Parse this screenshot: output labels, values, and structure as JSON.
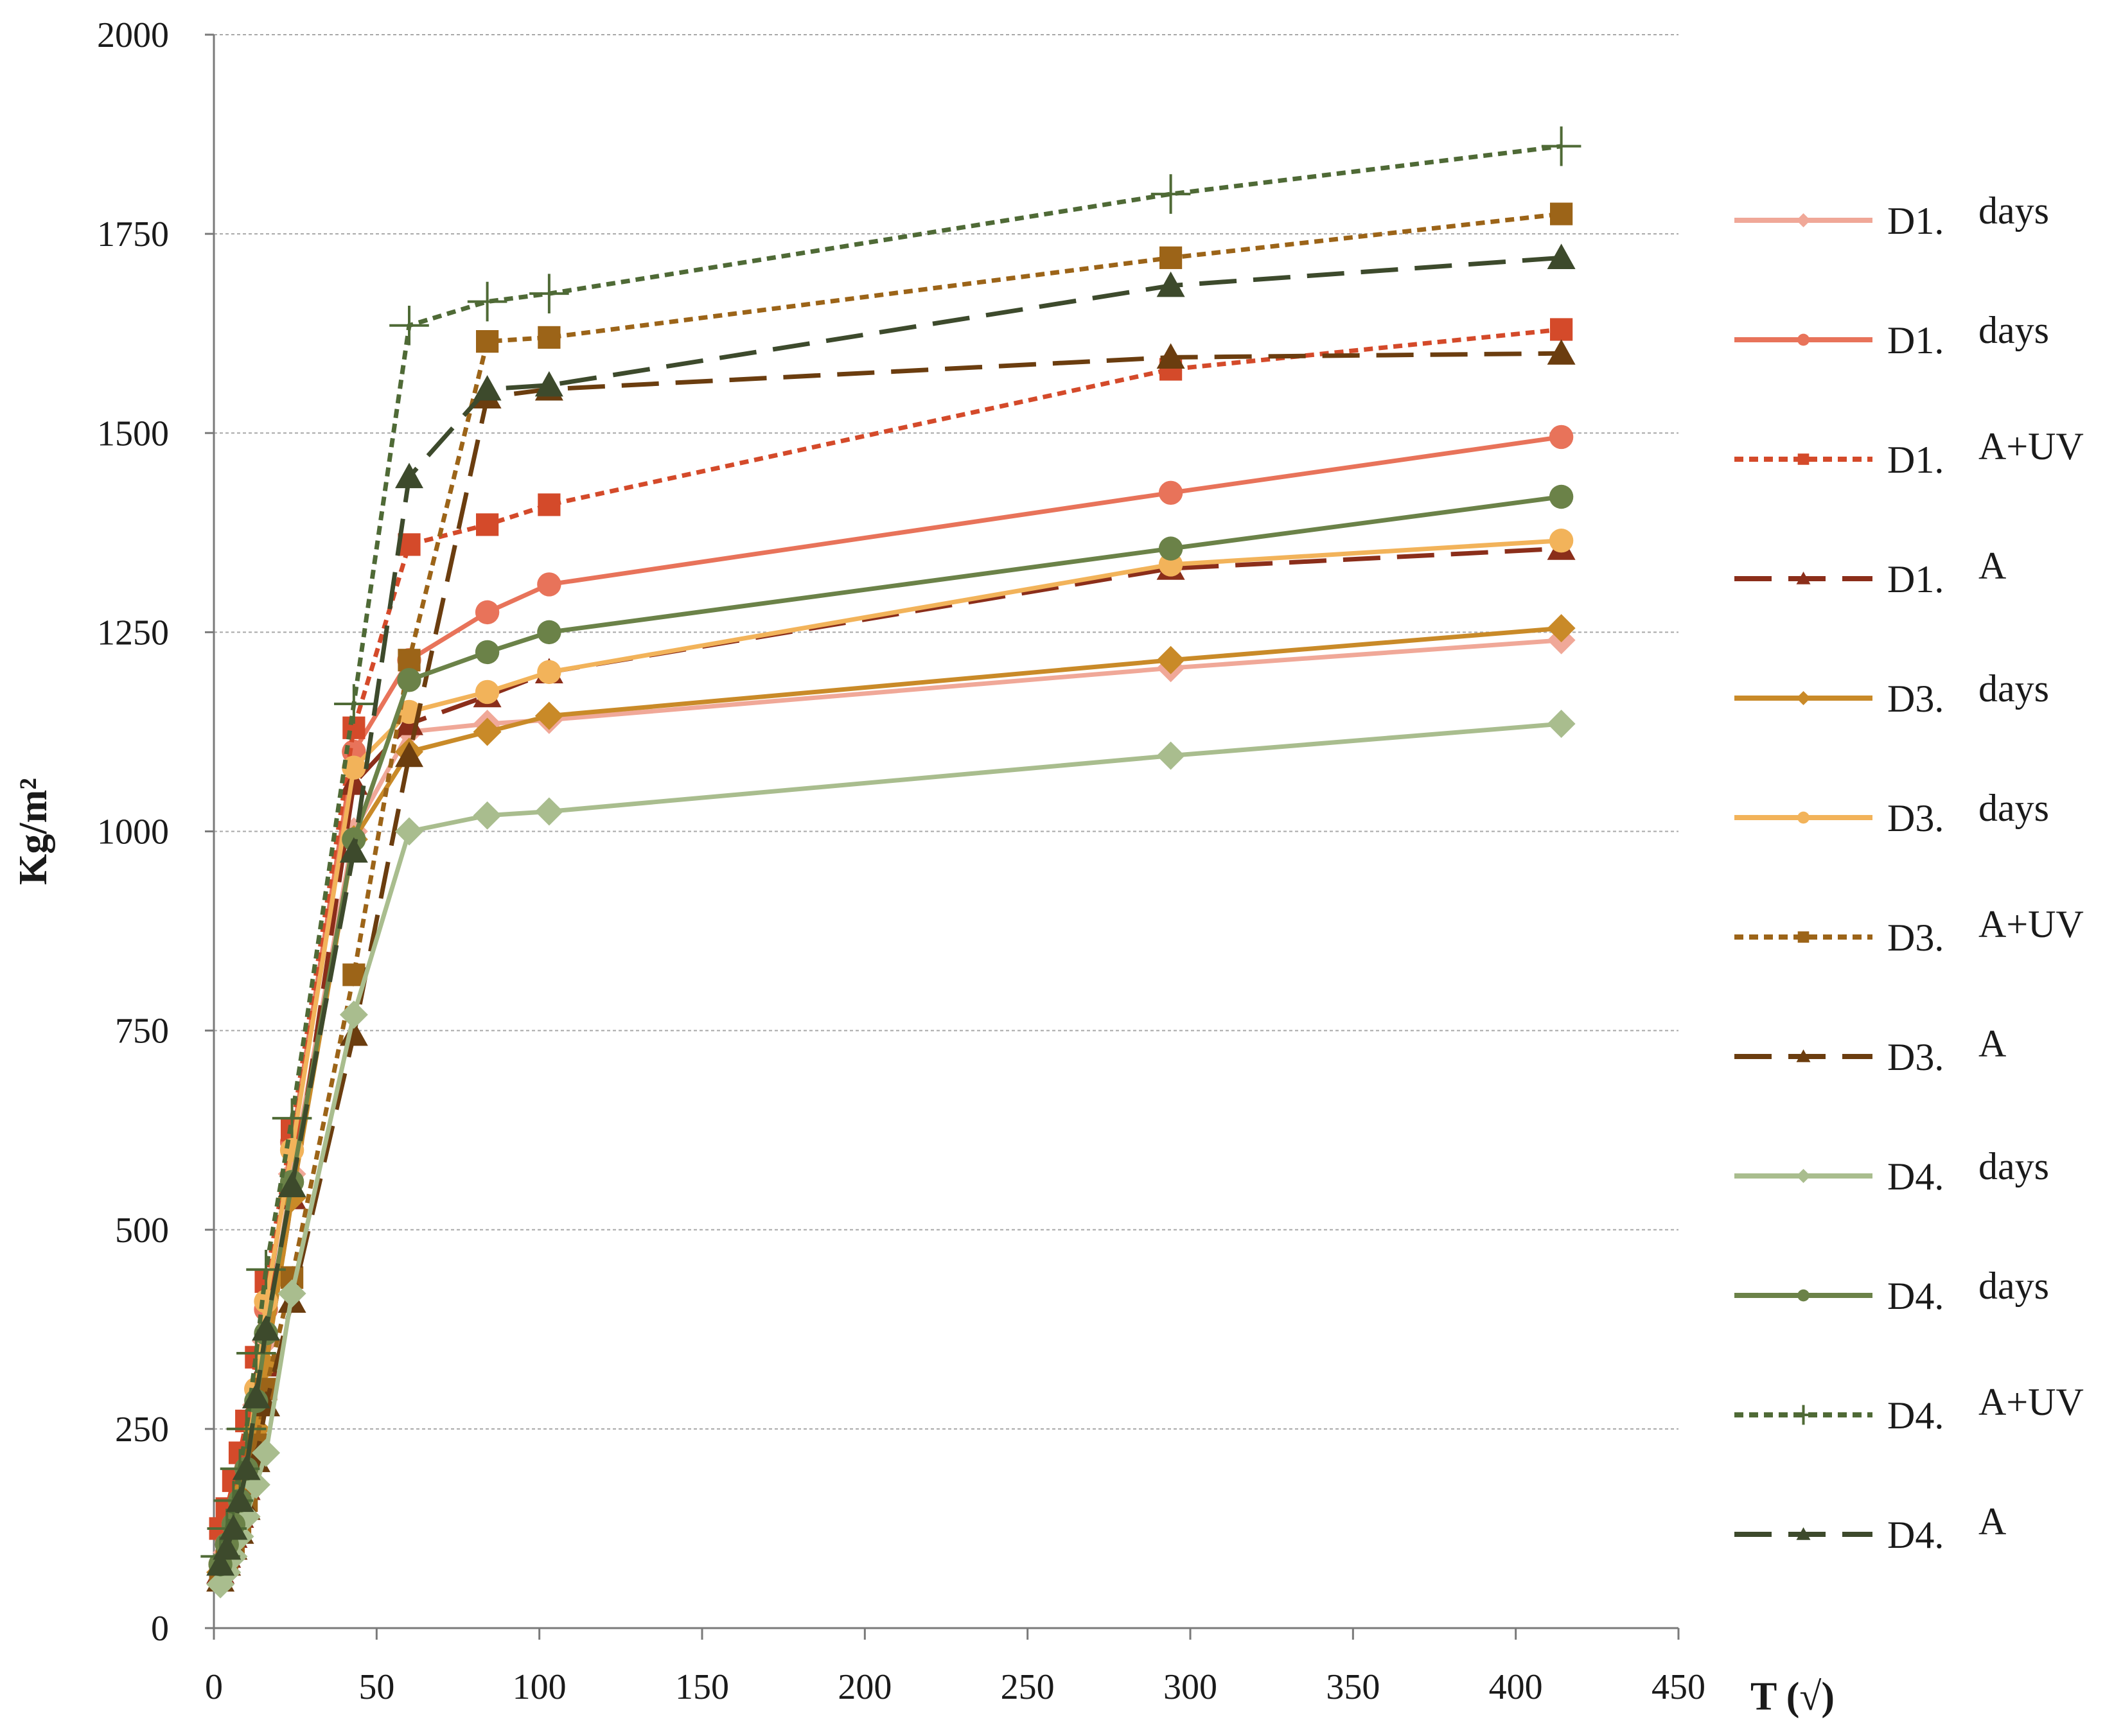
{
  "chart_data": {
    "type": "line",
    "title": "",
    "xlabel": "T (√)",
    "ylabel": "Kg/m²",
    "xlim": [
      0,
      450
    ],
    "ylim": [
      0,
      2000
    ],
    "xticks": [
      0,
      50,
      100,
      150,
      200,
      250,
      300,
      350,
      400,
      450
    ],
    "yticks": [
      0,
      250,
      500,
      750,
      1000,
      1250,
      1500,
      1750,
      2000
    ],
    "grid": "horizontal dotted",
    "legend_position": "right",
    "series": [
      {
        "label_a": "D1.",
        "label_b": "days",
        "color": "#f0a898",
        "dash": "solid",
        "marker": "diamond",
        "points": [
          [
            2,
            70
          ],
          [
            4,
            95
          ],
          [
            6,
            120
          ],
          [
            8,
            150
          ],
          [
            10,
            190
          ],
          [
            13,
            280
          ],
          [
            16,
            360
          ],
          [
            24,
            570
          ],
          [
            43,
            1000
          ],
          [
            60,
            1125
          ],
          [
            84,
            1135
          ],
          [
            103,
            1140
          ],
          [
            294,
            1205
          ],
          [
            414,
            1240
          ]
        ]
      },
      {
        "label_a": "D1.",
        "label_b": "days",
        "color": "#e8735a",
        "dash": "solid",
        "marker": "circle",
        "points": [
          [
            2,
            80
          ],
          [
            4,
            110
          ],
          [
            6,
            140
          ],
          [
            8,
            175
          ],
          [
            10,
            210
          ],
          [
            13,
            300
          ],
          [
            16,
            400
          ],
          [
            24,
            610
          ],
          [
            43,
            1100
          ],
          [
            60,
            1215
          ],
          [
            84,
            1275
          ],
          [
            103,
            1310
          ],
          [
            294,
            1425
          ],
          [
            414,
            1495
          ]
        ]
      },
      {
        "label_a": "D1.",
        "label_b": "A+UV",
        "color": "#d44a2a",
        "dash": "dot",
        "marker": "square",
        "points": [
          [
            2,
            125
          ],
          [
            4,
            150
          ],
          [
            6,
            185
          ],
          [
            8,
            220
          ],
          [
            10,
            260
          ],
          [
            13,
            340
          ],
          [
            16,
            435
          ],
          [
            24,
            625
          ],
          [
            43,
            1130
          ],
          [
            60,
            1360
          ],
          [
            84,
            1385
          ],
          [
            103,
            1410
          ],
          [
            294,
            1580
          ],
          [
            414,
            1630
          ]
        ]
      },
      {
        "label_a": "D1.",
        "label_b": "A",
        "color": "#8b2e1a",
        "dash": "longdash",
        "marker": "triangle",
        "points": [
          [
            2,
            70
          ],
          [
            4,
            90
          ],
          [
            6,
            115
          ],
          [
            8,
            140
          ],
          [
            10,
            175
          ],
          [
            13,
            250
          ],
          [
            16,
            330
          ],
          [
            24,
            540
          ],
          [
            43,
            1060
          ],
          [
            60,
            1135
          ],
          [
            84,
            1170
          ],
          [
            103,
            1200
          ],
          [
            294,
            1330
          ],
          [
            414,
            1355
          ]
        ]
      },
      {
        "label_a": "D3.",
        "label_b": "days",
        "color": "#c98a28",
        "dash": "solid",
        "marker": "diamond",
        "points": [
          [
            2,
            70
          ],
          [
            4,
            90
          ],
          [
            6,
            115
          ],
          [
            8,
            140
          ],
          [
            10,
            175
          ],
          [
            13,
            250
          ],
          [
            16,
            330
          ],
          [
            24,
            540
          ],
          [
            43,
            990
          ],
          [
            60,
            1100
          ],
          [
            84,
            1125
          ],
          [
            103,
            1145
          ],
          [
            294,
            1215
          ],
          [
            414,
            1255
          ]
        ]
      },
      {
        "label_a": "D3.",
        "label_b": "days",
        "color": "#f2b35a",
        "dash": "solid",
        "marker": "circle",
        "points": [
          [
            2,
            80
          ],
          [
            4,
            105
          ],
          [
            6,
            130
          ],
          [
            8,
            160
          ],
          [
            10,
            200
          ],
          [
            13,
            300
          ],
          [
            16,
            410
          ],
          [
            24,
            600
          ],
          [
            43,
            1080
          ],
          [
            60,
            1150
          ],
          [
            84,
            1175
          ],
          [
            103,
            1200
          ],
          [
            294,
            1335
          ],
          [
            414,
            1365
          ]
        ]
      },
      {
        "label_a": "D3.",
        "label_b": "A+UV",
        "color": "#9c6418",
        "dash": "dot",
        "marker": "square",
        "points": [
          [
            2,
            65
          ],
          [
            4,
            85
          ],
          [
            6,
            105
          ],
          [
            8,
            130
          ],
          [
            10,
            160
          ],
          [
            13,
            230
          ],
          [
            16,
            300
          ],
          [
            24,
            440
          ],
          [
            43,
            820
          ],
          [
            60,
            1215
          ],
          [
            84,
            1615
          ],
          [
            103,
            1620
          ],
          [
            294,
            1720
          ],
          [
            414,
            1775
          ]
        ]
      },
      {
        "label_a": "D3.",
        "label_b": "A",
        "color": "#6b3d0f",
        "dash": "longdash",
        "marker": "triangle",
        "points": [
          [
            2,
            60
          ],
          [
            4,
            80
          ],
          [
            6,
            100
          ],
          [
            8,
            120
          ],
          [
            10,
            150
          ],
          [
            13,
            210
          ],
          [
            16,
            280
          ],
          [
            24,
            410
          ],
          [
            43,
            745
          ],
          [
            60,
            1095
          ],
          [
            84,
            1545
          ],
          [
            103,
            1555
          ],
          [
            294,
            1595
          ],
          [
            414,
            1600
          ]
        ]
      },
      {
        "label_a": "D4.",
        "label_b": "days",
        "color": "#a9bd8e",
        "dash": "solid",
        "marker": "diamond",
        "points": [
          [
            2,
            55
          ],
          [
            4,
            70
          ],
          [
            6,
            90
          ],
          [
            8,
            115
          ],
          [
            10,
            140
          ],
          [
            13,
            180
          ],
          [
            16,
            220
          ],
          [
            24,
            420
          ],
          [
            43,
            770
          ],
          [
            60,
            1000
          ],
          [
            84,
            1020
          ],
          [
            103,
            1025
          ],
          [
            294,
            1095
          ],
          [
            414,
            1135
          ]
        ]
      },
      {
        "label_a": "D4.",
        "label_b": "days",
        "color": "#6b8248",
        "dash": "solid",
        "marker": "circle",
        "points": [
          [
            2,
            80
          ],
          [
            4,
            105
          ],
          [
            6,
            130
          ],
          [
            8,
            160
          ],
          [
            10,
            200
          ],
          [
            13,
            285
          ],
          [
            16,
            370
          ],
          [
            24,
            560
          ],
          [
            43,
            990
          ],
          [
            60,
            1190
          ],
          [
            84,
            1225
          ],
          [
            103,
            1250
          ],
          [
            294,
            1355
          ],
          [
            414,
            1420
          ]
        ]
      },
      {
        "label_a": "D4.",
        "label_b": "A+UV",
        "color": "#4f6a36",
        "dash": "dot",
        "marker": "plus",
        "points": [
          [
            2,
            90
          ],
          [
            4,
            125
          ],
          [
            6,
            160
          ],
          [
            8,
            200
          ],
          [
            10,
            250
          ],
          [
            13,
            345
          ],
          [
            16,
            450
          ],
          [
            24,
            640
          ],
          [
            43,
            1160
          ],
          [
            60,
            1635
          ],
          [
            84,
            1665
          ],
          [
            103,
            1675
          ],
          [
            294,
            1800
          ],
          [
            414,
            1860
          ]
        ]
      },
      {
        "label_a": "D4.",
        "label_b": "A",
        "color": "#3d4a2c",
        "dash": "longdash",
        "marker": "triangle",
        "points": [
          [
            2,
            80
          ],
          [
            4,
            100
          ],
          [
            6,
            125
          ],
          [
            8,
            160
          ],
          [
            10,
            200
          ],
          [
            13,
            290
          ],
          [
            16,
            375
          ],
          [
            24,
            555
          ],
          [
            43,
            975
          ],
          [
            60,
            1445
          ],
          [
            84,
            1555
          ],
          [
            103,
            1560
          ],
          [
            294,
            1685
          ],
          [
            414,
            1720
          ]
        ]
      }
    ]
  }
}
